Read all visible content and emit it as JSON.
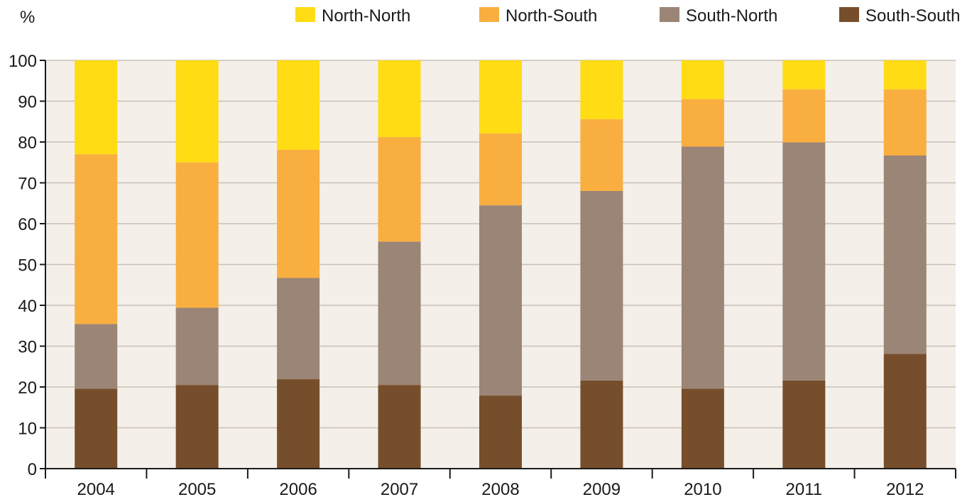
{
  "chart_data": {
    "type": "bar",
    "stacked": true,
    "ylabel": "%",
    "ylim": [
      0,
      100
    ],
    "yticks": [
      0,
      10,
      20,
      30,
      40,
      50,
      60,
      70,
      80,
      90,
      100
    ],
    "grid": true,
    "legend_position": "top",
    "categories": [
      "2004",
      "2005",
      "2006",
      "2007",
      "2008",
      "2009",
      "2010",
      "2011",
      "2012"
    ],
    "series": [
      {
        "name": "South-South",
        "color": "#774e2b",
        "values": [
          19.6,
          20.5,
          21.9,
          20.5,
          17.9,
          21.6,
          19.6,
          21.6,
          28.1
        ]
      },
      {
        "name": "South-North",
        "color": "#9b8576",
        "values": [
          15.8,
          18.9,
          24.8,
          35.1,
          46.6,
          46.4,
          59.3,
          58.3,
          48.6
        ]
      },
      {
        "name": "North-South",
        "color": "#f9ae40",
        "values": [
          41.6,
          35.6,
          31.4,
          25.6,
          17.6,
          17.6,
          11.6,
          13.0,
          16.2
        ]
      },
      {
        "name": "North-North",
        "color": "#ffdc14",
        "values": [
          23.0,
          25.0,
          21.9,
          18.8,
          17.9,
          14.4,
          9.5,
          7.1,
          7.1
        ]
      }
    ],
    "legend_order": [
      "North-North",
      "North-South",
      "South-North",
      "South-South"
    ],
    "plot_background": "#f4efe9",
    "grid_color": "#c9c0b6"
  }
}
